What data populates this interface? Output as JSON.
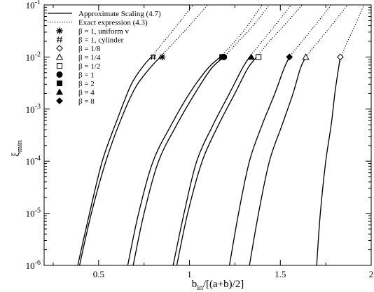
{
  "chart_data": {
    "type": "line",
    "title": "",
    "xlabel": "b_in/[(a+b)/2]",
    "ylabel": "ξ_min",
    "xlim": [
      0.2,
      2.0
    ],
    "ylim": [
      1e-06,
      0.1
    ],
    "yscale": "log",
    "x_ticks": [
      0.5,
      1,
      1.5,
      2
    ],
    "x_tick_labels": [
      "0.5",
      "1",
      "1.5",
      "2"
    ],
    "y_ticks": [
      1e-06,
      1e-05,
      0.0001,
      0.001,
      0.01,
      0.1
    ],
    "y_tick_labels": [
      {
        "base": "10",
        "exp": "-6"
      },
      {
        "base": "10",
        "exp": "-5"
      },
      {
        "base": "10",
        "exp": "-4"
      },
      {
        "base": "10",
        "exp": "-3"
      },
      {
        "base": "10",
        "exp": "-2"
      },
      {
        "base": "10",
        "exp": "-1"
      }
    ],
    "grid": false,
    "legend_position": "top-left",
    "legend": [
      {
        "label": "Approximate Scaling (4.7)",
        "kind": "line",
        "style": "solid"
      },
      {
        "label": "Exact expression (4.3)",
        "kind": "line",
        "style": "dotted"
      },
      {
        "label": "β = 1, uniform v",
        "kind": "marker",
        "marker": "asterisk"
      },
      {
        "label": "β = 1, cylinder",
        "kind": "marker",
        "marker": "hash"
      },
      {
        "label": "β = 1/8",
        "kind": "marker",
        "marker": "diamond-open"
      },
      {
        "label": "β = 1/4",
        "kind": "marker",
        "marker": "triangle-open"
      },
      {
        "label": "β = 1/2",
        "kind": "marker",
        "marker": "square-open"
      },
      {
        "label": "β = 1",
        "kind": "marker",
        "marker": "circle-filled"
      },
      {
        "label": "β = 2",
        "kind": "marker",
        "marker": "square-filled"
      },
      {
        "label": "β = 4",
        "kind": "marker",
        "marker": "triangle-filled"
      },
      {
        "label": "β = 8",
        "kind": "marker",
        "marker": "diamond-filled"
      }
    ],
    "curves": [
      {
        "approx": {
          "x": [
            0.385,
            0.45,
            0.52,
            0.6,
            0.68,
            0.75,
            0.79
          ],
          "y": [
            1e-06,
            1e-05,
            0.0001,
            0.0006,
            0.003,
            0.007,
            0.01
          ]
        },
        "exact": {
          "x": [
            0.385,
            0.45,
            0.52,
            0.6,
            0.68,
            0.75,
            0.8,
            0.86,
            0.93,
            1.02
          ],
          "y": [
            1e-06,
            1e-05,
            0.0001,
            0.0006,
            0.003,
            0.007,
            0.011,
            0.02,
            0.04,
            0.1
          ]
        },
        "marker": {
          "x": 0.8,
          "y": 0.01,
          "symbol": "hash"
        }
      },
      {
        "approx": {
          "x": [
            0.395,
            0.46,
            0.54,
            0.62,
            0.7,
            0.78,
            0.84
          ],
          "y": [
            1e-06,
            1e-05,
            0.0001,
            0.0006,
            0.0025,
            0.006,
            0.01
          ]
        },
        "exact": {
          "x": [
            0.395,
            0.46,
            0.54,
            0.62,
            0.7,
            0.78,
            0.85,
            0.92,
            1.0,
            1.1
          ],
          "y": [
            1e-06,
            1e-05,
            0.0001,
            0.0006,
            0.0025,
            0.006,
            0.011,
            0.02,
            0.04,
            0.1
          ]
        },
        "marker": {
          "x": 0.85,
          "y": 0.01,
          "symbol": "asterisk"
        }
      },
      {
        "approx": {
          "x": [
            0.66,
            0.72,
            0.8,
            0.9,
            1.0,
            1.1,
            1.17
          ],
          "y": [
            1e-06,
            1e-05,
            0.0001,
            0.0005,
            0.002,
            0.006,
            0.01
          ]
        },
        "exact": {
          "x": [
            0.66,
            0.72,
            0.8,
            0.9,
            1.0,
            1.1,
            1.18,
            1.25,
            1.32,
            1.4
          ],
          "y": [
            1e-06,
            1e-05,
            0.0001,
            0.0005,
            0.002,
            0.006,
            0.011,
            0.02,
            0.04,
            0.1
          ]
        },
        "marker": {
          "x": 1.18,
          "y": 0.01,
          "symbol": "square-filled"
        }
      },
      {
        "approx": {
          "x": [
            0.69,
            0.75,
            0.83,
            0.93,
            1.03,
            1.12,
            1.19
          ],
          "y": [
            1e-06,
            1e-05,
            0.0001,
            0.0005,
            0.002,
            0.006,
            0.01
          ]
        },
        "exact": {
          "x": [
            0.69,
            0.75,
            0.83,
            0.93,
            1.03,
            1.12,
            1.2,
            1.27,
            1.35,
            1.44
          ],
          "y": [
            1e-06,
            1e-05,
            0.0001,
            0.0005,
            0.002,
            0.006,
            0.011,
            0.02,
            0.04,
            0.1
          ]
        },
        "marker": {
          "x": 1.19,
          "y": 0.01,
          "symbol": "circle-filled"
        }
      },
      {
        "approx": {
          "x": [
            0.91,
            0.97,
            1.04,
            1.13,
            1.22,
            1.29,
            1.33
          ],
          "y": [
            1e-06,
            1e-05,
            0.0001,
            0.0005,
            0.002,
            0.006,
            0.01
          ]
        },
        "exact": {
          "x": [
            0.91,
            0.97,
            1.04,
            1.13,
            1.22,
            1.29,
            1.34,
            1.4,
            1.47,
            1.56
          ],
          "y": [
            1e-06,
            1e-05,
            0.0001,
            0.0005,
            0.002,
            0.006,
            0.011,
            0.02,
            0.04,
            0.1
          ]
        },
        "marker": {
          "x": 1.34,
          "y": 0.01,
          "symbol": "triangle-filled"
        }
      },
      {
        "approx": {
          "x": [
            0.93,
            0.99,
            1.07,
            1.16,
            1.25,
            1.32,
            1.37
          ],
          "y": [
            1e-06,
            1e-05,
            0.0001,
            0.0005,
            0.002,
            0.006,
            0.01
          ]
        },
        "exact": {
          "x": [
            0.93,
            0.99,
            1.07,
            1.16,
            1.25,
            1.32,
            1.38,
            1.44,
            1.52,
            1.62
          ],
          "y": [
            1e-06,
            1e-05,
            0.0001,
            0.0005,
            0.002,
            0.006,
            0.011,
            0.02,
            0.04,
            0.1
          ]
        },
        "marker": {
          "x": 1.38,
          "y": 0.01,
          "symbol": "square-open"
        }
      },
      {
        "approx": {
          "x": [
            1.22,
            1.27,
            1.33,
            1.4,
            1.47,
            1.52,
            1.55
          ],
          "y": [
            1e-06,
            1e-05,
            0.0001,
            0.0005,
            0.002,
            0.006,
            0.01
          ]
        },
        "exact": {
          "x": [
            1.22,
            1.27,
            1.33,
            1.4,
            1.47,
            1.52,
            1.56,
            1.62,
            1.69,
            1.78
          ],
          "y": [
            1e-06,
            1e-05,
            0.0001,
            0.0005,
            0.002,
            0.006,
            0.011,
            0.02,
            0.04,
            0.1
          ]
        },
        "marker": {
          "x": 1.55,
          "y": 0.01,
          "symbol": "diamond-filled"
        }
      },
      {
        "approx": {
          "x": [
            1.33,
            1.38,
            1.44,
            1.51,
            1.57,
            1.61,
            1.64
          ],
          "y": [
            1e-06,
            1e-05,
            0.0001,
            0.0005,
            0.002,
            0.006,
            0.01
          ]
        },
        "exact": {
          "x": [
            1.33,
            1.38,
            1.44,
            1.51,
            1.57,
            1.61,
            1.65,
            1.71,
            1.78,
            1.87
          ],
          "y": [
            1e-06,
            1e-05,
            0.0001,
            0.0005,
            0.002,
            0.006,
            0.011,
            0.02,
            0.04,
            0.1
          ]
        },
        "marker": {
          "x": 1.64,
          "y": 0.01,
          "symbol": "triangle-open"
        }
      },
      {
        "approx": {
          "x": [
            1.7,
            1.72,
            1.75,
            1.78,
            1.8,
            1.82,
            1.83
          ],
          "y": [
            1e-06,
            1e-05,
            0.0001,
            0.0005,
            0.002,
            0.006,
            0.01
          ]
        },
        "exact": {
          "x": [
            1.7,
            1.72,
            1.75,
            1.78,
            1.8,
            1.82,
            1.84,
            1.87,
            1.91,
            1.96
          ],
          "y": [
            1e-06,
            1e-05,
            0.0001,
            0.0005,
            0.002,
            0.006,
            0.011,
            0.02,
            0.04,
            0.1
          ]
        },
        "marker": {
          "x": 1.83,
          "y": 0.01,
          "symbol": "diamond-open"
        }
      }
    ]
  }
}
